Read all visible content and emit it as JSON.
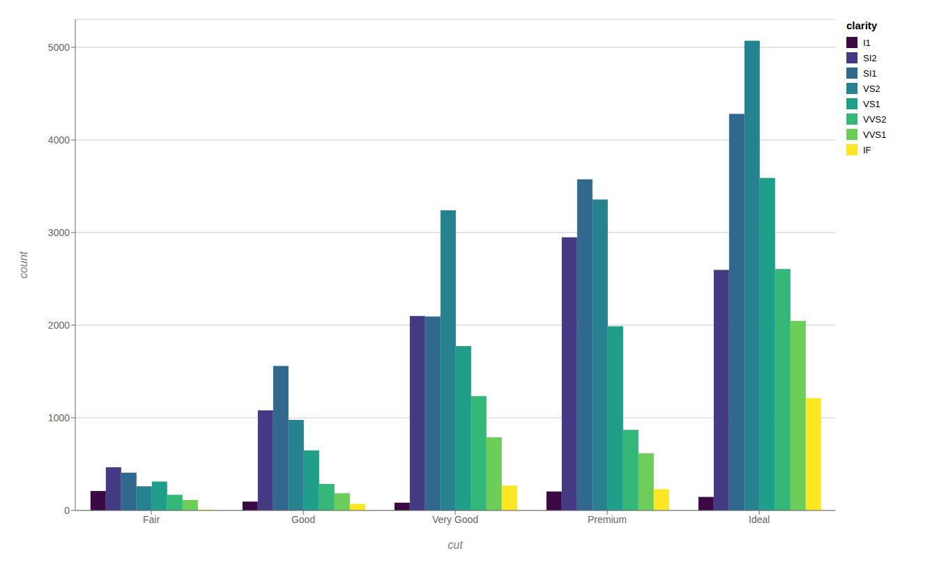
{
  "chart_data": {
    "type": "bar",
    "xlabel": "cut",
    "ylabel": "count",
    "legend_title": "clarity",
    "categories": [
      "Fair",
      "Good",
      "Very Good",
      "Premium",
      "Ideal"
    ],
    "series": [
      {
        "name": "I1",
        "color": "#3B0A45",
        "values": [
          210,
          96,
          84,
          205,
          146
        ]
      },
      {
        "name": "SI2",
        "color": "#443A83",
        "values": [
          466,
          1081,
          2100,
          2949,
          2598
        ]
      },
      {
        "name": "SI1",
        "color": "#31688E",
        "values": [
          408,
          1560,
          2093,
          3575,
          4282
        ]
      },
      {
        "name": "VS2",
        "color": "#26828E",
        "values": [
          261,
          978,
          3240,
          3357,
          5071
        ]
      },
      {
        "name": "VS1",
        "color": "#1F9E89",
        "values": [
          312,
          648,
          1775,
          1989,
          3589
        ]
      },
      {
        "name": "VVS2",
        "color": "#35B779",
        "values": [
          169,
          286,
          1235,
          870,
          2606
        ]
      },
      {
        "name": "VVS1",
        "color": "#6DCD59",
        "values": [
          113,
          186,
          789,
          616,
          2047
        ]
      },
      {
        "name": "IF",
        "color": "#FDE725",
        "values": [
          9,
          71,
          268,
          230,
          1212
        ]
      }
    ],
    "ylim": [
      0,
      5300
    ],
    "yticks": [
      0,
      1000,
      2000,
      3000,
      4000,
      5000
    ],
    "grid": true,
    "legend": "right"
  }
}
